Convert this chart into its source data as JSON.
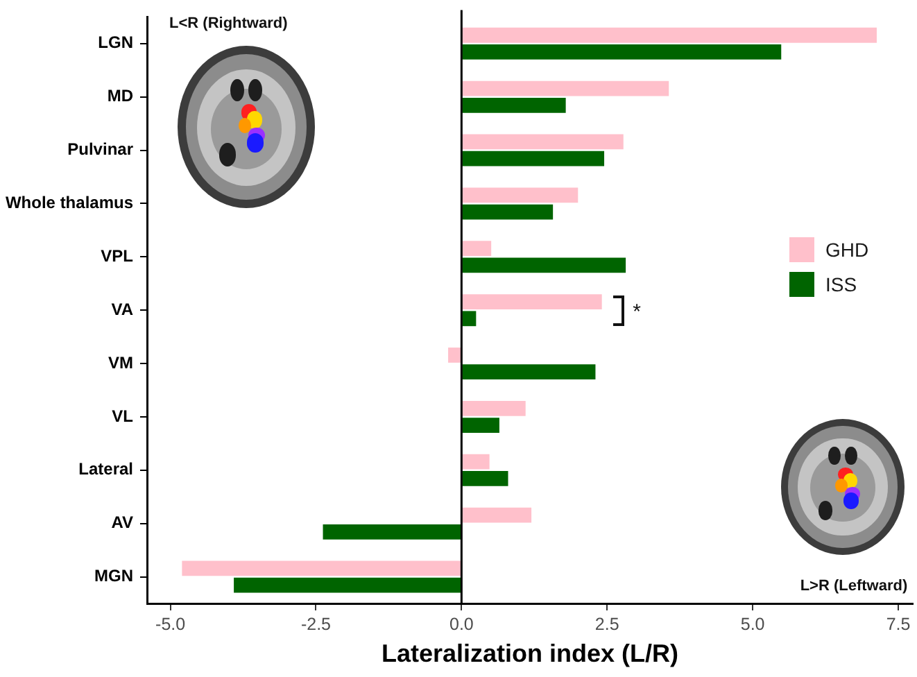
{
  "chart_data": {
    "type": "bar",
    "orientation": "horizontal",
    "xlabel": "Lateralization index (L/R)",
    "categories": [
      "LGN",
      "MD",
      "Pulvinar",
      "Whole thalamus",
      "VPL",
      "VA",
      "VM",
      "VL",
      "Lateral",
      "AV",
      "MGN"
    ],
    "series": [
      {
        "name": "GHD",
        "color": "#ffc0cb",
        "values": [
          7.13,
          3.56,
          2.78,
          2.0,
          0.51,
          2.41,
          -0.23,
          1.1,
          0.48,
          1.2,
          -4.8
        ]
      },
      {
        "name": "ISS",
        "color": "#006400",
        "values": [
          5.49,
          1.79,
          2.45,
          1.57,
          2.82,
          0.25,
          2.3,
          0.65,
          0.8,
          -2.38,
          -3.91
        ]
      }
    ],
    "xlim": [
      -5.4,
      7.75
    ],
    "xticks": [
      {
        "value": -5,
        "label": "-5.0"
      },
      -2.5,
      {
        "value": 0,
        "label": "0.0"
      },
      2.5,
      {
        "value": 5,
        "label": "5.0"
      },
      7.5
    ],
    "legend": "right",
    "ref_lines": [
      {
        "axis": "x",
        "value": 0,
        "color": "#000000"
      }
    ],
    "annotations": [
      "L<R (Rightward)",
      "L>R (Leftward)",
      "*"
    ]
  }
}
